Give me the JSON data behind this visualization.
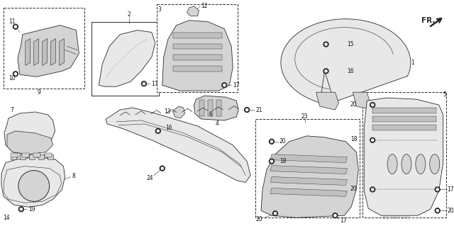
{
  "bg_color": "#ffffff",
  "fig_width": 6.4,
  "fig_height": 3.19,
  "dpi": 100,
  "watermark": "SHJ4B3710G",
  "line_color": "#2a2a2a",
  "fill_color": "#e8e8e8",
  "fill_dark": "#c0c0c0",
  "fill_mid": "#d4d4d4",
  "label_fs": 5.5,
  "label_color": "#111111"
}
